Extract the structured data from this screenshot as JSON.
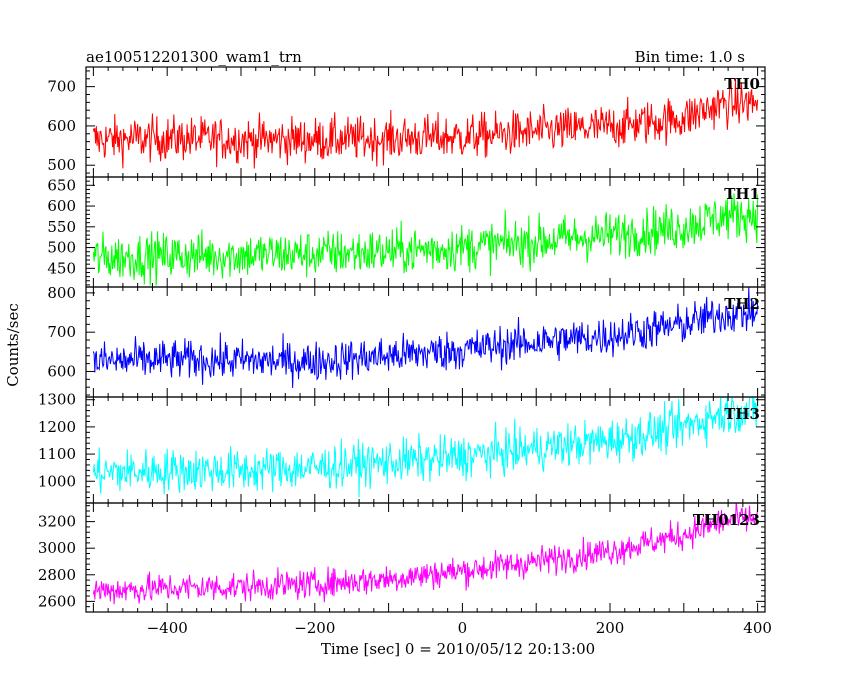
{
  "header": {
    "title": "ae100512201300_wam1_trn",
    "bin_time": "Bin time: 1.0 s"
  },
  "axes": {
    "xlabel": "Time [sec] 0 = 2010/05/12 20:13:00",
    "ylabel": "Counts/sec"
  },
  "chart_data": [
    {
      "type": "line",
      "name": "TH0",
      "color": "#ff0000",
      "xlim": [
        -510,
        410
      ],
      "ylim": [
        470,
        750
      ],
      "yticks": [
        500,
        600,
        700
      ],
      "ytick_labels": [
        "500",
        "600",
        "700"
      ],
      "x": [
        -500,
        -400,
        -300,
        -200,
        -100,
        0,
        100,
        200,
        300,
        350,
        400
      ],
      "y": [
        565,
        568,
        565,
        565,
        568,
        572,
        585,
        598,
        620,
        655,
        660
      ],
      "noise": 28
    },
    {
      "type": "line",
      "name": "TH1",
      "color": "#00ff00",
      "xlim": [
        -510,
        410
      ],
      "ylim": [
        405,
        670
      ],
      "yticks": [
        450,
        500,
        550,
        600,
        650
      ],
      "ytick_labels": [
        "450",
        "500",
        "550",
        "600",
        "650"
      ],
      "x": [
        -500,
        -400,
        -300,
        -200,
        -100,
        0,
        100,
        200,
        300,
        350,
        400
      ],
      "y": [
        475,
        480,
        482,
        485,
        490,
        500,
        515,
        530,
        550,
        575,
        580
      ],
      "noise": 28
    },
    {
      "type": "line",
      "name": "TH2",
      "color": "#0000ff",
      "xlim": [
        -510,
        410
      ],
      "ylim": [
        535,
        815
      ],
      "yticks": [
        600,
        700,
        800
      ],
      "ytick_labels": [
        "600",
        "700",
        "800"
      ],
      "x": [
        -500,
        -400,
        -300,
        -200,
        -100,
        0,
        100,
        200,
        300,
        350,
        400
      ],
      "y": [
        625,
        630,
        628,
        625,
        640,
        655,
        675,
        690,
        720,
        745,
        750
      ],
      "noise": 25
    },
    {
      "type": "line",
      "name": "TH3",
      "color": "#00ffff",
      "xlim": [
        -510,
        410
      ],
      "ylim": [
        920,
        1310
      ],
      "yticks": [
        1000,
        1100,
        1200,
        1300
      ],
      "ytick_labels": [
        "1000",
        "1100",
        "1200",
        "1300"
      ],
      "x": [
        -500,
        -400,
        -300,
        -200,
        -100,
        0,
        100,
        200,
        300,
        350,
        400
      ],
      "y": [
        1030,
        1040,
        1040,
        1050,
        1070,
        1090,
        1120,
        1150,
        1200,
        1250,
        1260
      ],
      "noise": 40
    },
    {
      "type": "line",
      "name": "TH0123",
      "color": "#ff00ff",
      "xlim": [
        -510,
        410
      ],
      "ylim": [
        2520,
        3340
      ],
      "yticks": [
        2600,
        2800,
        3000,
        3200
      ],
      "ytick_labels": [
        "2600",
        "2800",
        "3000",
        "3200"
      ],
      "x": [
        -500,
        -400,
        -300,
        -200,
        -100,
        0,
        100,
        200,
        300,
        350,
        400
      ],
      "y": [
        2680,
        2700,
        2710,
        2730,
        2770,
        2830,
        2900,
        2980,
        3100,
        3200,
        3230
      ],
      "noise": 55
    }
  ],
  "xaxis": {
    "ticks": [
      -400,
      -200,
      0,
      200,
      400
    ],
    "tick_labels": [
      "−400",
      "−200",
      "0",
      "200",
      "400"
    ]
  }
}
